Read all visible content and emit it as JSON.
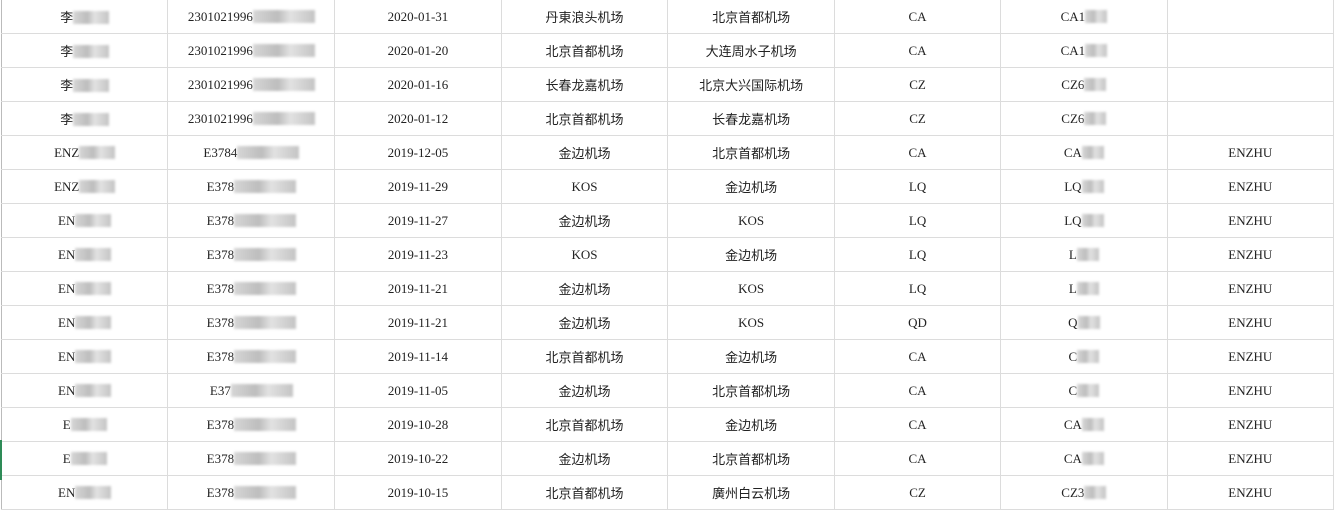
{
  "rows": [
    [
      "李",
      "2301021996",
      "2020-01-31",
      "丹東浪头机场",
      "北京首都机场",
      "CA",
      "CA1",
      ""
    ],
    [
      "李",
      "2301021996",
      "2020-01-20",
      "北京首都机场",
      "大连周水子机场",
      "CA",
      "CA1",
      ""
    ],
    [
      "李",
      "2301021996",
      "2020-01-16",
      "长春龙嘉机场",
      "北京大兴国际机场",
      "CZ",
      "CZ6",
      ""
    ],
    [
      "李",
      "2301021996",
      "2020-01-12",
      "北京首都机场",
      "长春龙嘉机场",
      "CZ",
      "CZ6",
      ""
    ],
    [
      "ENZ",
      "E3784",
      "2019-12-05",
      "金边机场",
      "北京首都机场",
      "CA",
      "CA",
      "ENZHU"
    ],
    [
      "ENZ",
      "E378",
      "2019-11-29",
      "KOS",
      "金边机场",
      "LQ",
      "LQ",
      "ENZHU"
    ],
    [
      "EN",
      "E378",
      "2019-11-27",
      "金边机场",
      "KOS",
      "LQ",
      "LQ",
      "ENZHU"
    ],
    [
      "EN",
      "E378",
      "2019-11-23",
      "KOS",
      "金边机场",
      "LQ",
      "L",
      "ENZHU"
    ],
    [
      "EN",
      "E378",
      "2019-11-21",
      "金边机场",
      "KOS",
      "LQ",
      "L",
      "ENZHU"
    ],
    [
      "EN",
      "E378",
      "2019-11-21",
      "金边机场",
      "KOS",
      "QD",
      "Q",
      "ENZHU"
    ],
    [
      "EN",
      "E378",
      "2019-11-14",
      "北京首都机场",
      "金边机场",
      "CA",
      "C",
      "ENZHU"
    ],
    [
      "EN",
      "E37",
      "2019-11-05",
      "金边机场",
      "北京首都机场",
      "CA",
      "C",
      "ENZHU"
    ],
    [
      "E",
      "E378",
      "2019-10-28",
      "北京首都机场",
      "金边机场",
      "CA",
      "CA",
      "ENZHU"
    ],
    [
      "E",
      "E378",
      "2019-10-22",
      "金边机场",
      "北京首都机场",
      "CA",
      "CA",
      "ENZHU"
    ],
    [
      "EN",
      "E378",
      "2019-10-15",
      "北京首都机场",
      "廣州白云机场",
      "CZ",
      "CZ3",
      "ENZHU"
    ]
  ],
  "redacted_columns": [
    0,
    1,
    6
  ]
}
